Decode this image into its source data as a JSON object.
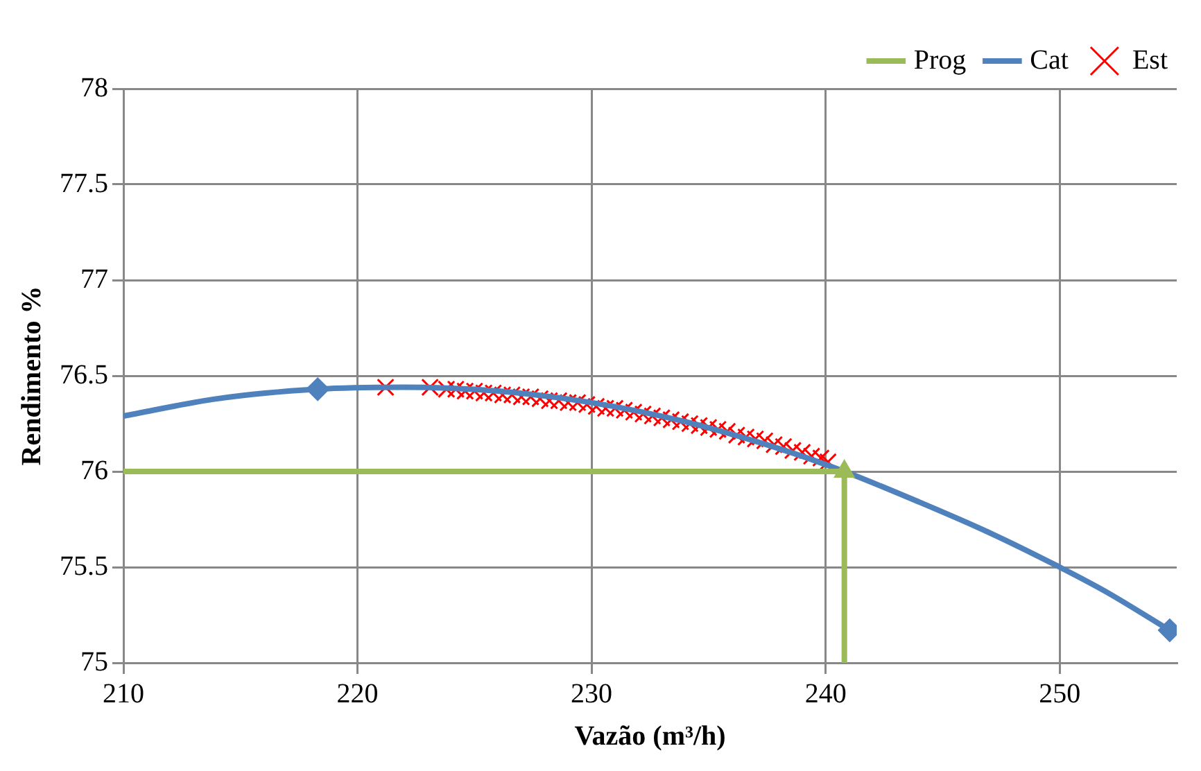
{
  "chart_data": {
    "type": "line",
    "xlabel": "Vazão (m³/h)",
    "ylabel": "Rendimento %",
    "xlim": [
      210,
      255
    ],
    "xticks": [
      210,
      220,
      230,
      240,
      250
    ],
    "ylim": [
      75,
      78
    ],
    "yticks": [
      75,
      75.5,
      76,
      76.5,
      77,
      77.5,
      78
    ],
    "grid": true,
    "legend": "top right",
    "line_style": "solid",
    "series": [
      {
        "name": "Prog",
        "color": "#9bbb59",
        "x": [
          210,
          240.8,
          240.8
        ],
        "values": [
          76,
          76,
          75
        ]
      },
      {
        "type": "scatter",
        "color": "#9bbb59",
        "marker": "triangle",
        "x": [
          240.8
        ],
        "values": [
          76
        ]
      },
      {
        "name": "Cat",
        "color": "#4f81bd",
        "x": [
          210,
          214,
          218.3,
          222,
          226,
          230,
          234,
          238,
          240.8,
          244,
          247,
          250,
          252,
          254.7
        ],
        "values": [
          76.29,
          76.38,
          76.43,
          76.44,
          76.42,
          76.36,
          76.26,
          76.12,
          76.0,
          75.84,
          75.68,
          75.5,
          75.37,
          75.17
        ]
      },
      {
        "type": "scatter",
        "color": "#4f81bd",
        "marker": "diamond",
        "x": [
          218.3,
          254.7
        ],
        "values": [
          76.43,
          75.17
        ]
      },
      {
        "name": "Est",
        "type": "scatter",
        "color": "#ff0000",
        "marker": "cross",
        "x": [
          221.2,
          223.1,
          223.8,
          224.2,
          224.6,
          225,
          225.4,
          225.8,
          226.2,
          226.6,
          227,
          227.4,
          227.8,
          228.2,
          228.6,
          229,
          229.4,
          229.8,
          230.2,
          230.6,
          231,
          231.4,
          231.8,
          232.2,
          232.6,
          233,
          233.4,
          233.8,
          234.2,
          234.6,
          235,
          235.4,
          235.8,
          236.2,
          236.6,
          237,
          237.4,
          237.8,
          238.2,
          238.6,
          239,
          239.4,
          239.8,
          240.1
        ],
        "values": [
          76.44,
          76.44,
          76.43,
          76.43,
          76.42,
          76.42,
          76.41,
          76.41,
          76.4,
          76.4,
          76.39,
          76.39,
          76.38,
          76.37,
          76.37,
          76.36,
          76.36,
          76.35,
          76.34,
          76.33,
          76.33,
          76.32,
          76.31,
          76.3,
          76.29,
          76.28,
          76.27,
          76.26,
          76.25,
          76.24,
          76.23,
          76.22,
          76.21,
          76.19,
          76.18,
          76.17,
          76.16,
          76.14,
          76.13,
          76.11,
          76.1,
          76.08,
          76.07,
          76.05
        ]
      }
    ]
  }
}
